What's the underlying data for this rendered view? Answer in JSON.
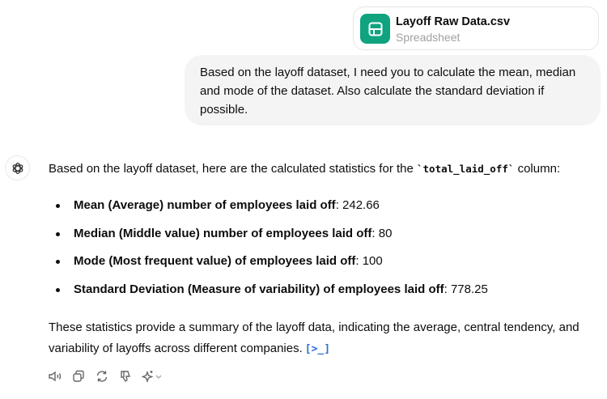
{
  "attachment": {
    "name": "Layoff Raw Data.csv",
    "type": "Spreadsheet",
    "icon": "table-icon",
    "color": "#10a37f"
  },
  "user_message": "Based on the layoff dataset, I need you to calculate the mean, median and mode of the dataset. Also calculate the standard deviation if possible.",
  "assistant": {
    "avatar_icon": "openai-logo-icon",
    "intro_before": "Based on the layoff dataset, here are the calculated statistics for the ",
    "intro_code": "`total_laid_off`",
    "intro_after": " column:",
    "stats": [
      {
        "label": "Mean (Average) number of employees laid off",
        "value": ": 242.66"
      },
      {
        "label": "Median (Middle value) number of employees laid off",
        "value": ": 80"
      },
      {
        "label": "Mode (Most frequent value) of employees laid off",
        "value": ": 100"
      },
      {
        "label": "Standard Deviation (Measure of variability) of employees laid off",
        "value": ": 778.25"
      }
    ],
    "summary": "These statistics provide a summary of the layoff data, indicating the average, central tendency, and variability of layoffs across different companies.",
    "citation": "[>_]"
  },
  "actions": [
    "read-aloud-icon",
    "copy-icon",
    "regenerate-icon",
    "thumbs-down-icon",
    "sparkle-model-icon"
  ]
}
